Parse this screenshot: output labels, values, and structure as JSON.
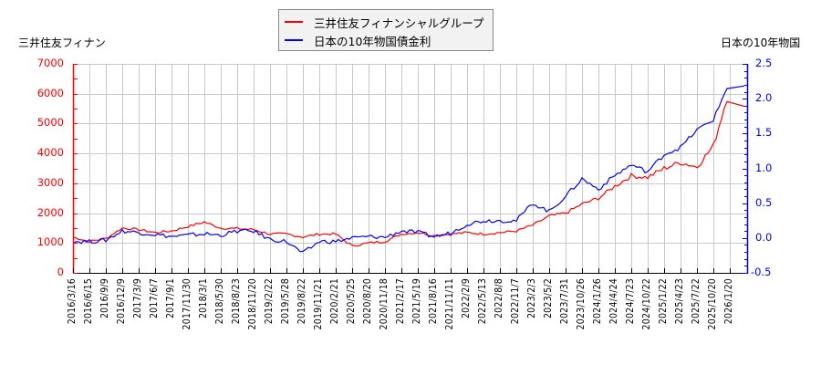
{
  "legend": {
    "items": [
      {
        "label": "三井住友フィナンシャルグループ",
        "color": "#ff0000"
      },
      {
        "label": "日本の10年物国債金利",
        "color": "#0000ff"
      }
    ]
  },
  "axes": {
    "left_title": "三井住友フィナン",
    "right_title": "日本の10年物国",
    "left_ticks": [
      "7000",
      "6000",
      "5000",
      "4000",
      "3000",
      "2000",
      "1000",
      "0"
    ],
    "right_ticks": [
      "2.5",
      "2.0",
      "1.5",
      "1.0",
      "0.5",
      "0.0",
      "-0.5"
    ]
  },
  "chart_data": {
    "type": "line",
    "title": "",
    "xlabel": "",
    "ylabel_left": "三井住友フィナン",
    "ylabel_right": "日本の10年物国",
    "ylim_left": [
      0,
      7000
    ],
    "ylim_right": [
      -0.5,
      2.5
    ],
    "grid": true,
    "legend_position": "top-center",
    "categories": [
      "2016/3/16",
      "2016/6/15",
      "2016/9/9",
      "2016/12/9",
      "2017/3/9",
      "2017/6/7",
      "2017/9/1",
      "2017/11/30",
      "2018/3/1",
      "2018/5/30",
      "2018/8/23",
      "2018/11/20",
      "2019/2/22",
      "2019/5/28",
      "2019/8/22",
      "2019/11/21",
      "2020/2/21",
      "2020/5/25",
      "2020/8/20",
      "2020/11/18",
      "2021/2/17",
      "2021/5/19",
      "2021/8/16",
      "2021/11/11",
      "2022/2/9",
      "2022/5/13",
      "2022/8/8",
      "2022/11/7",
      "2023/2/3",
      "2023/5/2",
      "2023/7/31",
      "2023/10/26",
      "2024/1/26",
      "2024/4/24",
      "2024/7/23",
      "2024/10/22",
      "2025/1/22",
      "2025/4/23",
      "2025/7/22",
      "2025/10/20",
      "2026/1/20"
    ],
    "series": [
      {
        "name": "三井住友フィナンシャルグループ",
        "axis": "left",
        "color": "#ff0000",
        "values": [
          1200,
          1050,
          1150,
          1500,
          1450,
          1350,
          1400,
          1550,
          1700,
          1500,
          1480,
          1450,
          1300,
          1300,
          1200,
          1300,
          1300,
          900,
          1000,
          1050,
          1300,
          1350,
          1250,
          1300,
          1350,
          1300,
          1350,
          1400,
          1600,
          1900,
          2000,
          2300,
          2500,
          2900,
          3250,
          3200,
          3500,
          3700,
          3550,
          4250,
          6200
        ]
      },
      {
        "name": "日本の10年物国債金利",
        "axis": "right",
        "color": "#0000ff",
        "values": [
          -0.05,
          -0.05,
          -0.03,
          0.1,
          0.08,
          0.05,
          0.02,
          0.04,
          0.06,
          0.04,
          0.1,
          0.1,
          -0.02,
          -0.05,
          -0.22,
          -0.05,
          -0.05,
          0.0,
          0.02,
          0.01,
          0.1,
          0.08,
          0.02,
          0.07,
          0.2,
          0.25,
          0.25,
          0.25,
          0.5,
          0.38,
          0.6,
          0.85,
          0.7,
          0.9,
          1.05,
          0.95,
          1.2,
          1.3,
          1.55,
          1.7,
          2.25
        ]
      }
    ]
  }
}
